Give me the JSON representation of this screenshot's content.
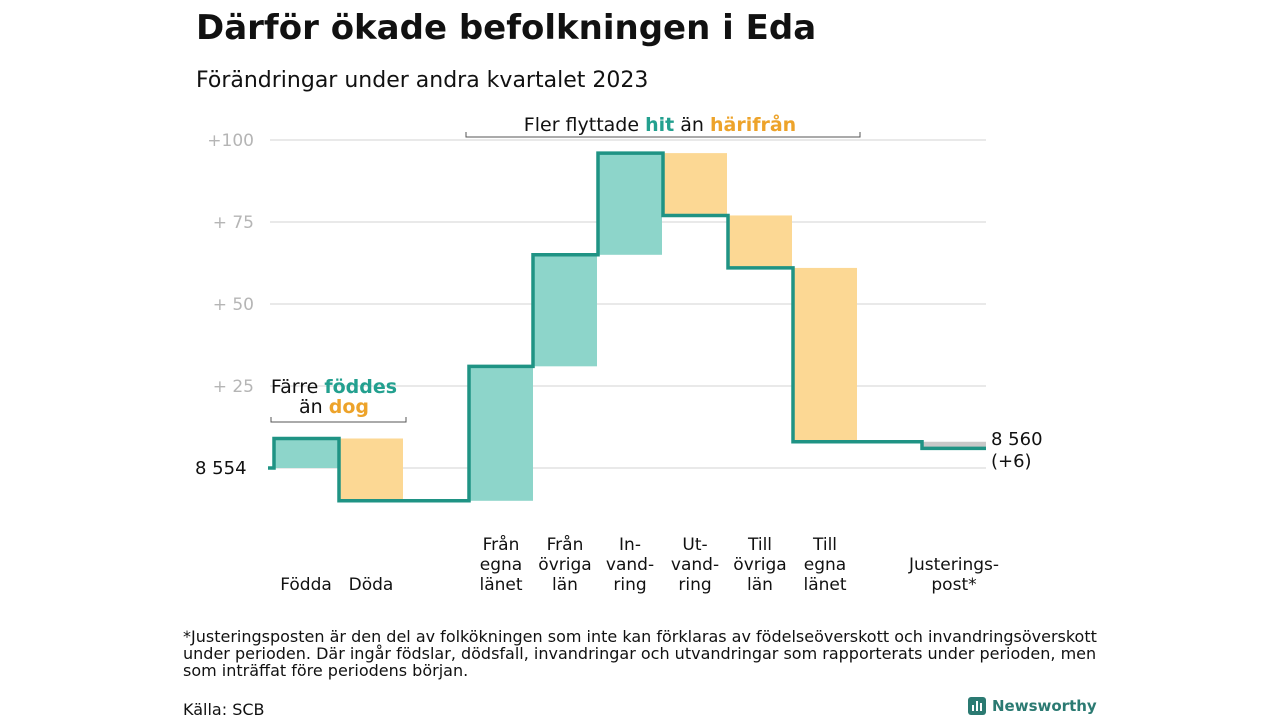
{
  "title": "Därför ökade befolkningen i Eda",
  "subtitle": "Förändringar under andra kvartalet 2023",
  "chart_data": {
    "type": "waterfall",
    "start": 8554,
    "start_label": "8  554",
    "end": 8560,
    "end_label_value": "8 560",
    "end_label_change": "(+6)",
    "y_tick_labels": [
      {
        "value": 8654,
        "label": "+100"
      },
      {
        "value": 8629,
        "label": "+  75"
      },
      {
        "value": 8604,
        "label": "+  50"
      },
      {
        "value": 8579,
        "label": "+  25"
      }
    ],
    "grid": true,
    "steps": [
      {
        "label_lines": [
          "Födda"
        ],
        "delta": 9,
        "kind": "in"
      },
      {
        "label_lines": [
          "Döda"
        ],
        "delta": -19,
        "kind": "out"
      },
      {
        "label_lines": [
          "Från",
          "egna",
          "länet"
        ],
        "delta": 41,
        "kind": "in"
      },
      {
        "label_lines": [
          "Från",
          "övriga",
          "län"
        ],
        "delta": 34,
        "kind": "in"
      },
      {
        "label_lines": [
          "In-",
          "vand-",
          "ring"
        ],
        "delta": 31,
        "kind": "in"
      },
      {
        "label_lines": [
          "Ut-",
          "vand-",
          "ring"
        ],
        "delta": -19,
        "kind": "out"
      },
      {
        "label_lines": [
          "Till",
          "övriga",
          "län"
        ],
        "delta": -16,
        "kind": "out"
      },
      {
        "label_lines": [
          "Till",
          "egna",
          "länet"
        ],
        "delta": -53,
        "kind": "out"
      },
      {
        "label_lines": [
          "Justerings-",
          "post*"
        ],
        "delta": -2,
        "kind": "adjustment"
      }
    ],
    "annotations": {
      "natural": {
        "line1_pre": "Färre ",
        "line1_hl": "föddes",
        "line2_pre": "än ",
        "line2_hl": "dog"
      },
      "migration": {
        "pre": "Fler flyttade ",
        "hl1": "hit",
        "mid": " än ",
        "hl2": "härifrån"
      }
    },
    "colors": {
      "in": "#8dd5ca",
      "out": "#fcd894",
      "adjustment": "#c8c8c8",
      "line": "#1f9384",
      "hl_in": "#23a08f",
      "hl_out": "#eda32a",
      "grid": "#e2e2e2",
      "tick": "#b5b5b5"
    }
  },
  "footnote": "*Justeringsposten är den del av folkökningen som inte kan förklaras av födelseöverskott och invandringsöverskott under perioden. Där ingår födslar, dödsfall, invandringar och utvandringar som rapporterats under perioden, men som inträffat före periodens början.",
  "source": "Källa: SCB",
  "brand": "Newsworthy"
}
